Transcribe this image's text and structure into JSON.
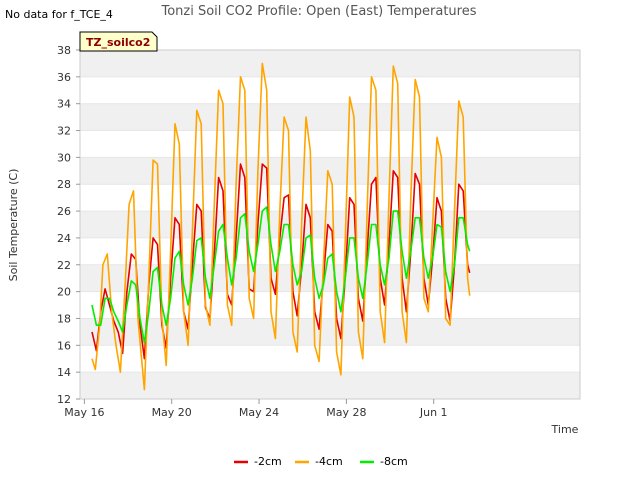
{
  "header": {
    "nodata_text": "No data for f_TCE_4",
    "title": "Tonzi Soil CO2 Profile: Open (East) Temperatures",
    "badge": "TZ_soilco2"
  },
  "colors": {
    "band": "#f0f0f0",
    "grid": "#ffffff",
    "axis": "#cccccc",
    "text": "#333333",
    "badge_bg": "#ffffcc",
    "badge_text": "#8b0000"
  },
  "chart_data": {
    "type": "line",
    "title": "Tonzi Soil CO2 Profile: Open (East) Temperatures",
    "xlabel": "Time",
    "ylabel": "Soil Temperature (C)",
    "xlim": [
      -0.2,
      22.7
    ],
    "ylim": [
      12,
      38
    ],
    "y_ticks": [
      12,
      14,
      16,
      18,
      20,
      22,
      24,
      26,
      28,
      30,
      32,
      34,
      36,
      38
    ],
    "x_ticks": [
      {
        "x": 0,
        "label": "May 16"
      },
      {
        "x": 4,
        "label": "May 20"
      },
      {
        "x": 8,
        "label": "May 24"
      },
      {
        "x": 12,
        "label": "May 28"
      },
      {
        "x": 16,
        "label": "Jun 1"
      }
    ],
    "grid": true,
    "legend_position": "bottom",
    "series": [
      {
        "name": "-2cm",
        "color": "#e60000",
        "points": [
          [
            0.35,
            17.0
          ],
          [
            0.55,
            15.6
          ],
          [
            0.75,
            18.5
          ],
          [
            0.95,
            20.2
          ],
          [
            1.15,
            19.0
          ],
          [
            1.35,
            17.8
          ],
          [
            1.55,
            17.0
          ],
          [
            1.75,
            15.4
          ],
          [
            1.95,
            20.0
          ],
          [
            2.15,
            22.8
          ],
          [
            2.35,
            22.4
          ],
          [
            2.55,
            17.5
          ],
          [
            2.75,
            15.0
          ],
          [
            2.95,
            20.5
          ],
          [
            3.15,
            24.0
          ],
          [
            3.35,
            23.5
          ],
          [
            3.55,
            17.5
          ],
          [
            3.75,
            15.8
          ],
          [
            3.95,
            21.0
          ],
          [
            4.15,
            25.5
          ],
          [
            4.35,
            25.0
          ],
          [
            4.55,
            18.5
          ],
          [
            4.75,
            17.2
          ],
          [
            4.95,
            22.0
          ],
          [
            5.15,
            26.5
          ],
          [
            5.35,
            26.0
          ],
          [
            5.55,
            18.8
          ],
          [
            5.75,
            18.0
          ],
          [
            5.95,
            22.8
          ],
          [
            6.15,
            28.5
          ],
          [
            6.35,
            27.5
          ],
          [
            6.55,
            19.8
          ],
          [
            6.75,
            19.0
          ],
          [
            6.95,
            24.0
          ],
          [
            7.15,
            29.5
          ],
          [
            7.35,
            28.5
          ],
          [
            7.55,
            20.2
          ],
          [
            7.75,
            20.0
          ],
          [
            7.95,
            25.0
          ],
          [
            8.15,
            29.5
          ],
          [
            8.35,
            29.2
          ],
          [
            8.55,
            21.0
          ],
          [
            8.75,
            19.8
          ],
          [
            8.95,
            24.0
          ],
          [
            9.15,
            27.0
          ],
          [
            9.35,
            27.2
          ],
          [
            9.55,
            20.0
          ],
          [
            9.75,
            18.2
          ],
          [
            9.95,
            21.8
          ],
          [
            10.15,
            26.5
          ],
          [
            10.35,
            25.5
          ],
          [
            10.55,
            18.5
          ],
          [
            10.75,
            17.2
          ],
          [
            10.95,
            21.0
          ],
          [
            11.15,
            25.0
          ],
          [
            11.35,
            24.5
          ],
          [
            11.55,
            18.0
          ],
          [
            11.75,
            16.5
          ],
          [
            11.95,
            21.2
          ],
          [
            12.15,
            27.0
          ],
          [
            12.35,
            26.5
          ],
          [
            12.55,
            19.5
          ],
          [
            12.75,
            17.8
          ],
          [
            12.95,
            23.0
          ],
          [
            13.15,
            28.0
          ],
          [
            13.35,
            28.5
          ],
          [
            13.55,
            21.0
          ],
          [
            13.75,
            19.0
          ],
          [
            13.95,
            23.5
          ],
          [
            14.15,
            29.0
          ],
          [
            14.35,
            28.5
          ],
          [
            14.55,
            21.0
          ],
          [
            14.75,
            18.5
          ],
          [
            14.95,
            23.0
          ],
          [
            15.15,
            28.8
          ],
          [
            15.35,
            28.0
          ],
          [
            15.55,
            21.0
          ],
          [
            15.75,
            19.0
          ],
          [
            15.95,
            22.5
          ],
          [
            16.15,
            27.0
          ],
          [
            16.35,
            26.0
          ],
          [
            16.55,
            19.5
          ],
          [
            16.75,
            17.8
          ],
          [
            16.95,
            22.0
          ],
          [
            17.15,
            28.0
          ],
          [
            17.35,
            27.5
          ],
          [
            17.55,
            22.0
          ],
          [
            17.65,
            21.4
          ]
        ]
      },
      {
        "name": "-4cm",
        "color": "#ffa500",
        "points": [
          [
            0.35,
            15.0
          ],
          [
            0.5,
            14.2
          ],
          [
            0.7,
            17.5
          ],
          [
            0.85,
            22.0
          ],
          [
            1.05,
            22.8
          ],
          [
            1.25,
            18.5
          ],
          [
            1.45,
            16.0
          ],
          [
            1.65,
            14.0
          ],
          [
            1.85,
            20.0
          ],
          [
            2.05,
            26.5
          ],
          [
            2.25,
            27.5
          ],
          [
            2.45,
            18.0
          ],
          [
            2.75,
            12.7
          ],
          [
            2.95,
            21.0
          ],
          [
            3.15,
            29.8
          ],
          [
            3.35,
            29.5
          ],
          [
            3.55,
            18.0
          ],
          [
            3.75,
            14.5
          ],
          [
            3.95,
            23.0
          ],
          [
            4.15,
            32.5
          ],
          [
            4.35,
            31.0
          ],
          [
            4.55,
            18.5
          ],
          [
            4.75,
            16.0
          ],
          [
            4.95,
            24.5
          ],
          [
            5.15,
            33.5
          ],
          [
            5.35,
            32.5
          ],
          [
            5.55,
            19.0
          ],
          [
            5.75,
            17.5
          ],
          [
            5.95,
            26.5
          ],
          [
            6.15,
            35.0
          ],
          [
            6.35,
            34.0
          ],
          [
            6.55,
            19.0
          ],
          [
            6.75,
            17.5
          ],
          [
            6.95,
            28.0
          ],
          [
            7.15,
            36.0
          ],
          [
            7.35,
            35.0
          ],
          [
            7.55,
            19.5
          ],
          [
            7.75,
            18.0
          ],
          [
            7.95,
            29.0
          ],
          [
            8.15,
            37.0
          ],
          [
            8.35,
            35.0
          ],
          [
            8.55,
            18.5
          ],
          [
            8.75,
            16.5
          ],
          [
            8.95,
            26.0
          ],
          [
            9.15,
            33.0
          ],
          [
            9.35,
            32.0
          ],
          [
            9.55,
            17.0
          ],
          [
            9.75,
            15.5
          ],
          [
            9.95,
            25.0
          ],
          [
            10.15,
            33.0
          ],
          [
            10.35,
            30.5
          ],
          [
            10.55,
            16.0
          ],
          [
            10.75,
            14.8
          ],
          [
            10.95,
            22.0
          ],
          [
            11.15,
            29.0
          ],
          [
            11.35,
            28.0
          ],
          [
            11.55,
            15.5
          ],
          [
            11.75,
            13.8
          ],
          [
            11.95,
            24.0
          ],
          [
            12.15,
            34.5
          ],
          [
            12.35,
            33.0
          ],
          [
            12.55,
            17.0
          ],
          [
            12.75,
            15.0
          ],
          [
            12.95,
            26.0
          ],
          [
            13.15,
            36.0
          ],
          [
            13.35,
            35.0
          ],
          [
            13.55,
            18.5
          ],
          [
            13.75,
            16.2
          ],
          [
            13.95,
            27.0
          ],
          [
            14.15,
            36.8
          ],
          [
            14.35,
            35.5
          ],
          [
            14.55,
            18.5
          ],
          [
            14.75,
            16.2
          ],
          [
            14.95,
            27.0
          ],
          [
            15.15,
            35.8
          ],
          [
            15.35,
            34.5
          ],
          [
            15.55,
            19.5
          ],
          [
            15.75,
            18.5
          ],
          [
            15.95,
            25.0
          ],
          [
            16.15,
            31.5
          ],
          [
            16.35,
            30.0
          ],
          [
            16.55,
            18.0
          ],
          [
            16.75,
            17.5
          ],
          [
            16.95,
            26.0
          ],
          [
            17.15,
            34.2
          ],
          [
            17.35,
            33.0
          ],
          [
            17.55,
            21.0
          ],
          [
            17.65,
            19.7
          ]
        ]
      },
      {
        "name": "-8cm",
        "color": "#00ee00",
        "points": [
          [
            0.35,
            19.0
          ],
          [
            0.55,
            17.5
          ],
          [
            0.75,
            17.5
          ],
          [
            0.95,
            19.5
          ],
          [
            1.15,
            19.5
          ],
          [
            1.35,
            18.5
          ],
          [
            1.55,
            17.8
          ],
          [
            1.75,
            17.0
          ],
          [
            1.95,
            19.0
          ],
          [
            2.15,
            20.8
          ],
          [
            2.35,
            20.5
          ],
          [
            2.55,
            18.0
          ],
          [
            2.75,
            16.2
          ],
          [
            2.95,
            18.5
          ],
          [
            3.15,
            21.5
          ],
          [
            3.35,
            21.8
          ],
          [
            3.55,
            19.0
          ],
          [
            3.75,
            17.5
          ],
          [
            3.95,
            19.5
          ],
          [
            4.15,
            22.5
          ],
          [
            4.35,
            23.0
          ],
          [
            4.55,
            20.5
          ],
          [
            4.75,
            19.0
          ],
          [
            4.95,
            21.0
          ],
          [
            5.15,
            23.8
          ],
          [
            5.35,
            24.0
          ],
          [
            5.55,
            21.0
          ],
          [
            5.75,
            19.5
          ],
          [
            5.95,
            22.0
          ],
          [
            6.15,
            24.5
          ],
          [
            6.35,
            25.0
          ],
          [
            6.55,
            22.5
          ],
          [
            6.75,
            20.5
          ],
          [
            6.95,
            22.5
          ],
          [
            7.15,
            25.5
          ],
          [
            7.35,
            25.8
          ],
          [
            7.55,
            23.0
          ],
          [
            7.75,
            21.5
          ],
          [
            7.95,
            23.5
          ],
          [
            8.15,
            26.0
          ],
          [
            8.35,
            26.3
          ],
          [
            8.55,
            23.5
          ],
          [
            8.75,
            21.5
          ],
          [
            8.95,
            23.0
          ],
          [
            9.15,
            25.0
          ],
          [
            9.35,
            25.0
          ],
          [
            9.55,
            22.0
          ],
          [
            9.75,
            20.5
          ],
          [
            9.95,
            21.5
          ],
          [
            10.15,
            24.0
          ],
          [
            10.35,
            24.2
          ],
          [
            10.55,
            21.0
          ],
          [
            10.75,
            19.5
          ],
          [
            10.95,
            20.5
          ],
          [
            11.15,
            22.5
          ],
          [
            11.35,
            22.8
          ],
          [
            11.55,
            20.0
          ],
          [
            11.75,
            18.5
          ],
          [
            11.95,
            21.0
          ],
          [
            12.15,
            24.0
          ],
          [
            12.35,
            24.0
          ],
          [
            12.55,
            21.0
          ],
          [
            12.75,
            19.5
          ],
          [
            12.95,
            22.0
          ],
          [
            13.15,
            25.0
          ],
          [
            13.35,
            25.0
          ],
          [
            13.55,
            22.0
          ],
          [
            13.75,
            20.5
          ],
          [
            13.95,
            22.5
          ],
          [
            14.15,
            26.0
          ],
          [
            14.35,
            26.0
          ],
          [
            14.55,
            23.0
          ],
          [
            14.75,
            21.0
          ],
          [
            14.95,
            23.0
          ],
          [
            15.15,
            25.5
          ],
          [
            15.35,
            25.5
          ],
          [
            15.55,
            22.5
          ],
          [
            15.75,
            21.0
          ],
          [
            15.95,
            22.5
          ],
          [
            16.15,
            25.0
          ],
          [
            16.35,
            24.8
          ],
          [
            16.55,
            21.5
          ],
          [
            16.75,
            20.0
          ],
          [
            16.95,
            22.0
          ],
          [
            17.15,
            25.5
          ],
          [
            17.35,
            25.5
          ],
          [
            17.55,
            23.5
          ],
          [
            17.65,
            23.0
          ]
        ]
      }
    ]
  }
}
